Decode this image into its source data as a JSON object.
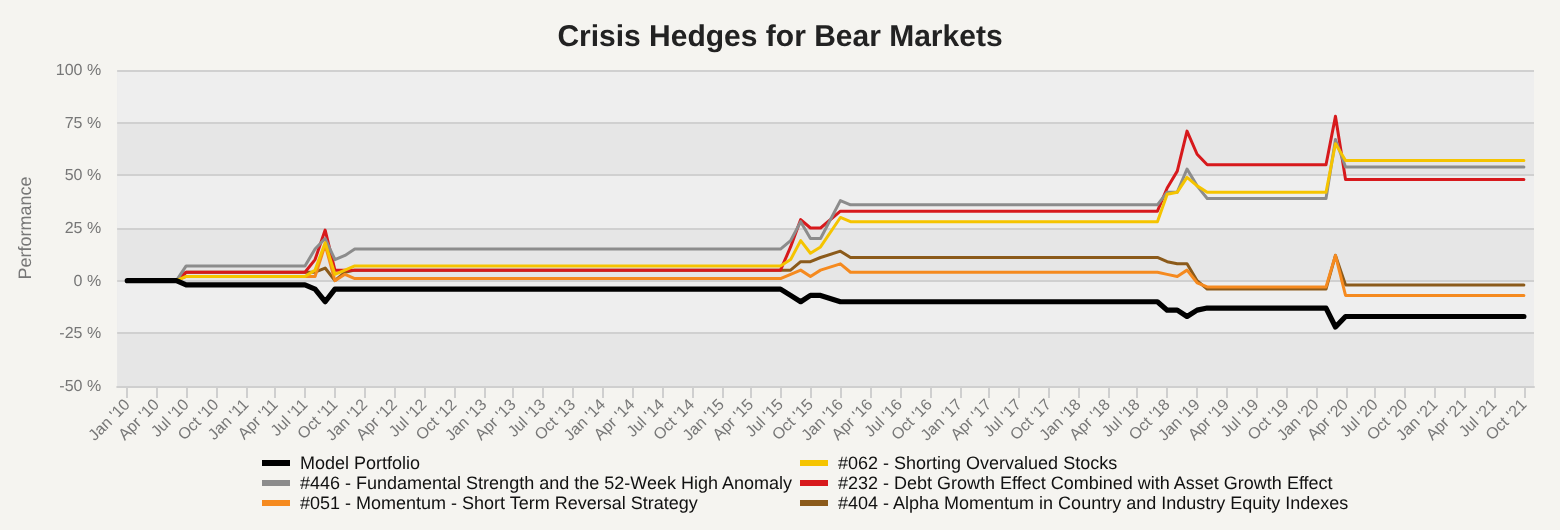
{
  "chart_data": {
    "type": "line",
    "title": "Crisis Hedges for Bear Markets",
    "ylabel": "Performance",
    "x": [
      "2010-01",
      "2010-06",
      "2010-07",
      "2011-07",
      "2011-08",
      "2011-09",
      "2011-10",
      "2011-11",
      "2011-12",
      "2015-07",
      "2015-08",
      "2015-09",
      "2015-10",
      "2015-11",
      "2016-01",
      "2016-02",
      "2018-09",
      "2018-10",
      "2018-11",
      "2018-12",
      "2019-01",
      "2019-02",
      "2020-02",
      "2020-03",
      "2020-04",
      "2021-10"
    ],
    "series": [
      {
        "name": "Model Portfolio",
        "color": "#000000",
        "values": [
          0,
          0,
          -2,
          -2,
          -4,
          -10,
          -4,
          -4,
          -4,
          -4,
          -7,
          -10,
          -7,
          -7,
          -10,
          -10,
          -10,
          -14,
          -14,
          -17,
          -14,
          -13,
          -13,
          -22,
          -17,
          -17
        ]
      },
      {
        "name": "#062 - Shorting Overvalued Stocks",
        "color": "#f5c400",
        "values": [
          0,
          0,
          2,
          2,
          5,
          18,
          3,
          5,
          7,
          7,
          10,
          19,
          13,
          16,
          30,
          28,
          28,
          41,
          42,
          49,
          45,
          42,
          42,
          65,
          57,
          57
        ]
      },
      {
        "name": "#446 - Fundamental Strength and the 52-Week High Anomaly",
        "color": "#8c8c8c",
        "values": [
          0,
          0,
          7,
          7,
          15,
          20,
          10,
          12,
          15,
          15,
          19,
          28,
          20,
          20,
          38,
          36,
          36,
          42,
          42,
          53,
          45,
          39,
          39,
          67,
          54,
          54
        ]
      },
      {
        "name": "#232 - Debt Growth Effect Combined with Asset Growth Effect",
        "color": "#d7191c",
        "values": [
          0,
          0,
          4,
          4,
          10,
          24,
          5,
          5,
          5,
          5,
          16,
          29,
          25,
          25,
          33,
          33,
          33,
          44,
          52,
          71,
          60,
          55,
          55,
          78,
          48,
          48
        ]
      },
      {
        "name": "#051 - Momentum - Short Term Reversal Strategy",
        "color": "#f58a1f",
        "values": [
          0,
          0,
          2,
          2,
          2,
          17,
          0,
          3,
          1,
          1,
          3,
          5,
          2,
          5,
          8,
          4,
          4,
          3,
          2,
          5,
          -1,
          -3,
          -3,
          12,
          -7,
          -7
        ]
      },
      {
        "name": "#404 - Alpha Momentum in Country and Industry Equity Indexes",
        "color": "#8b5a1a",
        "values": [
          0,
          0,
          4,
          4,
          4,
          6,
          0,
          4,
          5,
          5,
          5,
          9,
          9,
          11,
          14,
          11,
          11,
          9,
          8,
          8,
          0,
          -4,
          -4,
          12,
          -2,
          -2
        ]
      }
    ],
    "xlim": [
      "2009-12",
      "2021-11"
    ],
    "xticks": [
      {
        "value": "2010-01",
        "label": "Jan '10"
      },
      {
        "value": "2010-04",
        "label": "Apr '10"
      },
      {
        "value": "2010-07",
        "label": "Jul '10"
      },
      {
        "value": "2010-10",
        "label": "Oct '10"
      },
      {
        "value": "2011-01",
        "label": "Jan '11"
      },
      {
        "value": "2011-04",
        "label": "Apr '11"
      },
      {
        "value": "2011-07",
        "label": "Jul '11"
      },
      {
        "value": "2011-10",
        "label": "Oct '11"
      },
      {
        "value": "2012-01",
        "label": "Jan '12"
      },
      {
        "value": "2012-04",
        "label": "Apr '12"
      },
      {
        "value": "2012-07",
        "label": "Jul '12"
      },
      {
        "value": "2012-10",
        "label": "Oct '12"
      },
      {
        "value": "2013-01",
        "label": "Jan '13"
      },
      {
        "value": "2013-04",
        "label": "Apr '13"
      },
      {
        "value": "2013-07",
        "label": "Jul '13"
      },
      {
        "value": "2013-10",
        "label": "Oct '13"
      },
      {
        "value": "2014-01",
        "label": "Jan '14"
      },
      {
        "value": "2014-04",
        "label": "Apr '14"
      },
      {
        "value": "2014-07",
        "label": "Jul '14"
      },
      {
        "value": "2014-10",
        "label": "Oct '14"
      },
      {
        "value": "2015-01",
        "label": "Jan '15"
      },
      {
        "value": "2015-04",
        "label": "Apr '15"
      },
      {
        "value": "2015-07",
        "label": "Jul '15"
      },
      {
        "value": "2015-10",
        "label": "Oct '15"
      },
      {
        "value": "2016-01",
        "label": "Jan '16"
      },
      {
        "value": "2016-04",
        "label": "Apr '16"
      },
      {
        "value": "2016-07",
        "label": "Jul '16"
      },
      {
        "value": "2016-10",
        "label": "Oct '16"
      },
      {
        "value": "2017-01",
        "label": "Jan '17"
      },
      {
        "value": "2017-04",
        "label": "Apr '17"
      },
      {
        "value": "2017-07",
        "label": "Jul '17"
      },
      {
        "value": "2017-10",
        "label": "Oct '17"
      },
      {
        "value": "2018-01",
        "label": "Jan '18"
      },
      {
        "value": "2018-04",
        "label": "Apr '18"
      },
      {
        "value": "2018-07",
        "label": "Jul '18"
      },
      {
        "value": "2018-10",
        "label": "Oct '18"
      },
      {
        "value": "2019-01",
        "label": "Jan '19"
      },
      {
        "value": "2019-04",
        "label": "Apr '19"
      },
      {
        "value": "2019-07",
        "label": "Jul '19"
      },
      {
        "value": "2019-10",
        "label": "Oct '19"
      },
      {
        "value": "2020-01",
        "label": "Jan '20"
      },
      {
        "value": "2020-04",
        "label": "Apr '20"
      },
      {
        "value": "2020-07",
        "label": "Jul '20"
      },
      {
        "value": "2020-10",
        "label": "Oct '20"
      },
      {
        "value": "2021-01",
        "label": "Jan '21"
      },
      {
        "value": "2021-04",
        "label": "Apr '21"
      },
      {
        "value": "2021-07",
        "label": "Jul '21"
      },
      {
        "value": "2021-10",
        "label": "Oct '21"
      }
    ],
    "ylim": [
      -50,
      100
    ],
    "yticks": [
      {
        "value": -50,
        "label": "-50 %"
      },
      {
        "value": -25,
        "label": "-25 %"
      },
      {
        "value": 0,
        "label": "0 %"
      },
      {
        "value": 25,
        "label": "25 %"
      },
      {
        "value": 50,
        "label": "50 %"
      },
      {
        "value": 75,
        "label": "75 %"
      },
      {
        "value": 100,
        "label": "100 %"
      }
    ],
    "grid": "y",
    "legend": "bottom",
    "marker": "none",
    "line_style": "solid"
  }
}
